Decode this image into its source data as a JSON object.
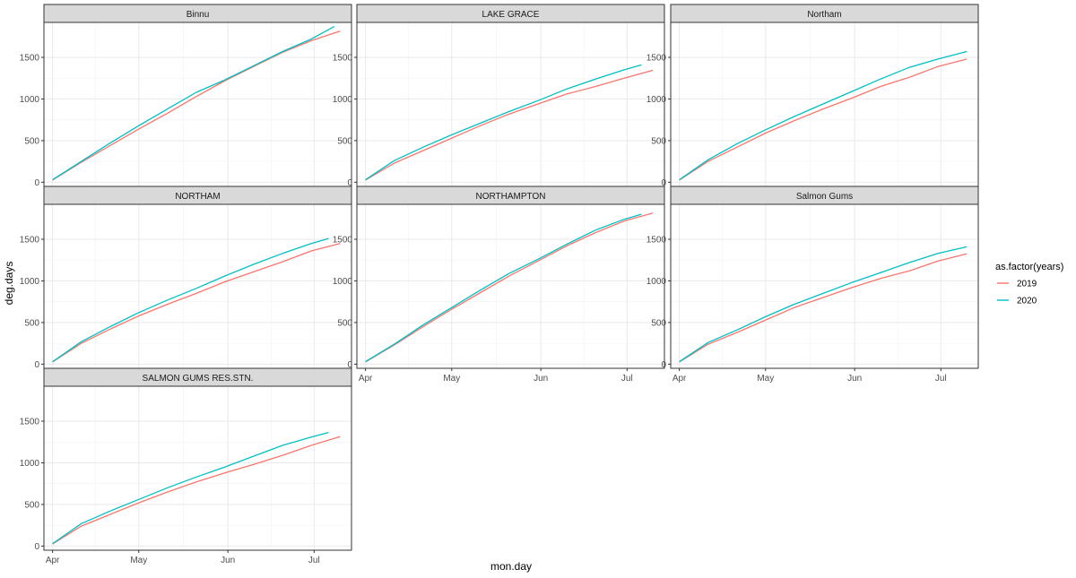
{
  "chart_data": {
    "type": "line",
    "facet_layout": "3 columns x 3 rows",
    "xlabel": "mon.day",
    "ylabel": "deg.days",
    "x_ticks": [
      "Apr",
      "May",
      "Jun",
      "Jul"
    ],
    "x_tick_days": [
      1,
      31,
      62,
      92
    ],
    "y_ticks": [
      0,
      500,
      1000,
      1500
    ],
    "grid": true,
    "legend": {
      "title": "as.factor(years)",
      "placement": "right",
      "entries": [
        {
          "label": "2019",
          "color": "#F8766D"
        },
        {
          "label": "2020",
          "color": "#00BFC4"
        }
      ]
    },
    "panels": [
      {
        "label": "Binnu",
        "xlim": [
          -2,
          105
        ],
        "ylim": [
          -50,
          1920
        ],
        "series": [
          {
            "name": "2019",
            "color": "#F8766D",
            "x": [
              1,
              11,
              21,
              31,
              41,
              51,
              61,
              71,
              81,
              91,
              101
            ],
            "y": [
              25,
              240,
              440,
              640,
              830,
              1030,
              1220,
              1390,
              1560,
              1700,
              1815
            ]
          },
          {
            "name": "2020",
            "color": "#00BFC4",
            "x": [
              1,
              11,
              21,
              31,
              41,
              51,
              61,
              71,
              81,
              91,
              99
            ],
            "y": [
              30,
              250,
              470,
              680,
              880,
              1080,
              1230,
              1400,
              1570,
              1720,
              1870
            ]
          }
        ]
      },
      {
        "label": "LAKE GRACE",
        "xlim": [
          -2,
          105
        ],
        "ylim": [
          -50,
          1920
        ],
        "series": [
          {
            "name": "2019",
            "color": "#F8766D",
            "x": [
              1,
              11,
              21,
              31,
              41,
              51,
              61,
              71,
              81,
              91,
              101
            ],
            "y": [
              25,
              230,
              380,
              530,
              680,
              820,
              940,
              1060,
              1150,
              1250,
              1345
            ]
          },
          {
            "name": "2020",
            "color": "#00BFC4",
            "x": [
              1,
              11,
              21,
              31,
              41,
              51,
              61,
              71,
              81,
              91,
              97
            ],
            "y": [
              30,
              260,
              420,
              570,
              710,
              850,
              980,
              1120,
              1240,
              1350,
              1410
            ]
          }
        ]
      },
      {
        "label": "Northam",
        "xlim": [
          -2,
          105
        ],
        "ylim": [
          -50,
          1920
        ],
        "series": [
          {
            "name": "2019",
            "color": "#F8766D",
            "x": [
              1,
              11,
              21,
              31,
              41,
              51,
              61,
              71,
              81,
              91,
              101
            ],
            "y": [
              25,
              250,
              420,
              590,
              740,
              880,
              1010,
              1150,
              1260,
              1390,
              1480
            ]
          },
          {
            "name": "2020",
            "color": "#00BFC4",
            "x": [
              1,
              11,
              21,
              31,
              41,
              51,
              61,
              71,
              81,
              91,
              101
            ],
            "y": [
              30,
              270,
              460,
              630,
              790,
              940,
              1090,
              1240,
              1380,
              1480,
              1570
            ]
          }
        ]
      },
      {
        "label": "NORTHAM",
        "xlim": [
          -2,
          105
        ],
        "ylim": [
          -50,
          1920
        ],
        "series": [
          {
            "name": "2019",
            "color": "#F8766D",
            "x": [
              1,
              11,
              21,
              31,
              41,
              51,
              61,
              71,
              81,
              91,
              101
            ],
            "y": [
              25,
              250,
              420,
              580,
              720,
              850,
              990,
              1110,
              1230,
              1360,
              1450
            ]
          },
          {
            "name": "2020",
            "color": "#00BFC4",
            "x": [
              1,
              11,
              21,
              31,
              41,
              51,
              61,
              71,
              81,
              91,
              97
            ],
            "y": [
              30,
              270,
              450,
              620,
              770,
              910,
              1060,
              1200,
              1330,
              1450,
              1510
            ]
          }
        ]
      },
      {
        "label": "NORTHAMPTON",
        "xlim": [
          -2,
          105
        ],
        "ylim": [
          -50,
          1920
        ],
        "series": [
          {
            "name": "2019",
            "color": "#F8766D",
            "x": [
              1,
              11,
              21,
              31,
              41,
              51,
              61,
              71,
              81,
              91,
              101
            ],
            "y": [
              25,
              230,
              450,
              660,
              860,
              1060,
              1240,
              1420,
              1580,
              1720,
              1815
            ]
          },
          {
            "name": "2020",
            "color": "#00BFC4",
            "x": [
              1,
              11,
              21,
              31,
              41,
              51,
              61,
              71,
              81,
              91,
              97
            ],
            "y": [
              30,
              240,
              470,
              680,
              890,
              1090,
              1260,
              1440,
              1610,
              1740,
              1800
            ]
          }
        ]
      },
      {
        "label": "Salmon Gums",
        "xlim": [
          -2,
          105
        ],
        "ylim": [
          -50,
          1920
        ],
        "series": [
          {
            "name": "2019",
            "color": "#F8766D",
            "x": [
              1,
              11,
              21,
              31,
              41,
              51,
              61,
              71,
              81,
              91,
              101
            ],
            "y": [
              25,
              240,
              380,
              530,
              680,
              800,
              920,
              1030,
              1120,
              1240,
              1325
            ]
          },
          {
            "name": "2020",
            "color": "#00BFC4",
            "x": [
              1,
              11,
              21,
              31,
              41,
              51,
              61,
              71,
              81,
              91,
              101
            ],
            "y": [
              30,
              260,
              410,
              570,
              720,
              850,
              980,
              1100,
              1220,
              1330,
              1410
            ]
          }
        ]
      },
      {
        "label": "SALMON GUMS RES.STN.",
        "xlim": [
          -2,
          105
        ],
        "ylim": [
          -50,
          1920
        ],
        "series": [
          {
            "name": "2019",
            "color": "#F8766D",
            "x": [
              1,
              11,
              21,
              31,
              41,
              51,
              61,
              71,
              81,
              91,
              101
            ],
            "y": [
              25,
              240,
              380,
              520,
              650,
              770,
              880,
              980,
              1090,
              1210,
              1315
            ]
          },
          {
            "name": "2020",
            "color": "#00BFC4",
            "x": [
              1,
              11,
              21,
              31,
              41,
              51,
              61,
              71,
              81,
              91,
              97
            ],
            "y": [
              30,
              270,
              420,
              560,
              700,
              830,
              950,
              1080,
              1210,
              1310,
              1365
            ]
          }
        ]
      }
    ]
  }
}
